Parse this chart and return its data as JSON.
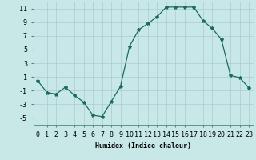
{
  "x": [
    0,
    1,
    2,
    3,
    4,
    5,
    6,
    7,
    8,
    9,
    10,
    11,
    12,
    13,
    14,
    15,
    16,
    17,
    18,
    19,
    20,
    21,
    22,
    23
  ],
  "y": [
    0.4,
    -1.3,
    -1.5,
    -0.5,
    -1.7,
    -2.7,
    -4.6,
    -4.8,
    -2.6,
    -0.4,
    5.5,
    7.9,
    8.8,
    9.8,
    11.2,
    11.2,
    11.2,
    11.2,
    9.2,
    8.1,
    6.5,
    1.2,
    0.9,
    -0.6
  ],
  "line_color": "#1a6b5a",
  "marker": "*",
  "marker_size": 3,
  "bg_color": "#c8e8e8",
  "grid_color": "#aacccc",
  "xlabel": "Humidex (Indice chaleur)",
  "ylabel": "",
  "xlim": [
    -0.5,
    23.5
  ],
  "ylim": [
    -6,
    12
  ],
  "xticks": [
    0,
    1,
    2,
    3,
    4,
    5,
    6,
    7,
    8,
    9,
    10,
    11,
    12,
    13,
    14,
    15,
    16,
    17,
    18,
    19,
    20,
    21,
    22,
    23
  ],
  "yticks": [
    -5,
    -3,
    -1,
    1,
    3,
    5,
    7,
    9,
    11
  ],
  "label_fontsize": 6,
  "tick_fontsize": 6
}
